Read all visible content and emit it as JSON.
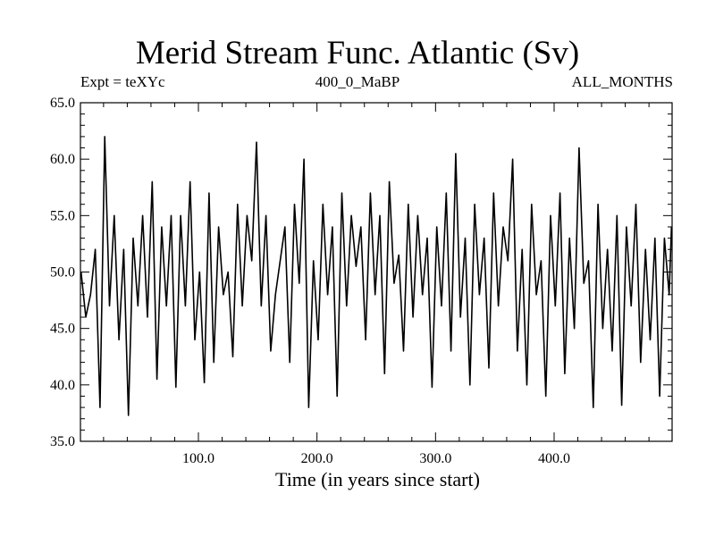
{
  "chart_data": {
    "type": "line",
    "title": "Merid Stream Func. Atlantic (Sv)",
    "annotations": {
      "left": "Expt = teXYc",
      "center": "400_0_MaBP",
      "right": "ALL_MONTHS"
    },
    "xlabel": "Time (in years since start)",
    "ylabel": "",
    "xlim": [
      0.5,
      499.5
    ],
    "ylim": [
      35.0,
      65.0
    ],
    "xticks": [
      100,
      200,
      300,
      400
    ],
    "xtick_labels": [
      "100.0",
      "200.0",
      "300.0",
      "400.0"
    ],
    "yticks": [
      35,
      40,
      45,
      50,
      55,
      60,
      65
    ],
    "ytick_labels": [
      "35.0",
      "40.0",
      "45.0",
      "50.0",
      "55.0",
      "60.0",
      "65.0"
    ],
    "grid": false,
    "series": [
      {
        "x": [
          1,
          5,
          9,
          13,
          17,
          21,
          25,
          29,
          33,
          37,
          41,
          45,
          49,
          53,
          57,
          61,
          65,
          69,
          73,
          77,
          81,
          85,
          89,
          93,
          97,
          101,
          105,
          109,
          113,
          117,
          121,
          125,
          129,
          133,
          137,
          141,
          145,
          149,
          153,
          157,
          161,
          165,
          169,
          173,
          177,
          181,
          185,
          189,
          193,
          197,
          201,
          205,
          209,
          213,
          217,
          221,
          225,
          229,
          233,
          237,
          241,
          245,
          249,
          253,
          257,
          261,
          265,
          269,
          273,
          277,
          281,
          285,
          289,
          293,
          297,
          301,
          305,
          309,
          313,
          317,
          321,
          325,
          329,
          333,
          337,
          341,
          345,
          349,
          353,
          357,
          361,
          365,
          369,
          373,
          377,
          381,
          385,
          389,
          393,
          397,
          401,
          405,
          409,
          413,
          417,
          421,
          425,
          429,
          433,
          437,
          441,
          445,
          449,
          453,
          457,
          461,
          465,
          469,
          473,
          477,
          481,
          485,
          489,
          493,
          497,
          499
        ],
        "y": [
          50.0,
          46.0,
          48.0,
          52.0,
          38.0,
          62.0,
          47.0,
          55.0,
          44.0,
          52.0,
          37.3,
          53.0,
          47.0,
          55.0,
          46.0,
          58.0,
          40.5,
          54.0,
          47.0,
          55.0,
          39.8,
          55.0,
          47.0,
          58.0,
          44.0,
          50.0,
          40.2,
          57.0,
          42.0,
          54.0,
          48.0,
          50.0,
          42.5,
          56.0,
          47.0,
          55.0,
          51.0,
          61.5,
          47.0,
          55.0,
          43.0,
          48.0,
          51.0,
          54.0,
          42.0,
          56.0,
          49.0,
          60.0,
          38.0,
          51.0,
          44.0,
          56.0,
          48.0,
          54.0,
          39.0,
          57.0,
          47.0,
          55.0,
          50.5,
          54.0,
          44.0,
          57.0,
          48.0,
          55.0,
          41.0,
          58.0,
          49.0,
          51.5,
          43.0,
          56.0,
          46.0,
          55.0,
          48.0,
          53.0,
          39.8,
          54.0,
          47.0,
          57.0,
          43.0,
          60.5,
          46.0,
          53.0,
          40.0,
          56.0,
          48.0,
          53.0,
          41.5,
          57.0,
          47.0,
          54.0,
          51.0,
          60.0,
          43.0,
          52.0,
          40.0,
          56.0,
          48.0,
          51.0,
          39.0,
          55.0,
          47.0,
          57.0,
          41.0,
          53.0,
          45.0,
          61.0,
          49.0,
          51.0,
          38.0,
          56.0,
          45.0,
          52.0,
          43.0,
          55.0,
          38.2,
          54.0,
          47.0,
          56.0,
          42.0,
          52.0,
          44.0,
          53.0,
          39.0,
          53.0,
          48.0,
          54.0
        ]
      }
    ]
  }
}
